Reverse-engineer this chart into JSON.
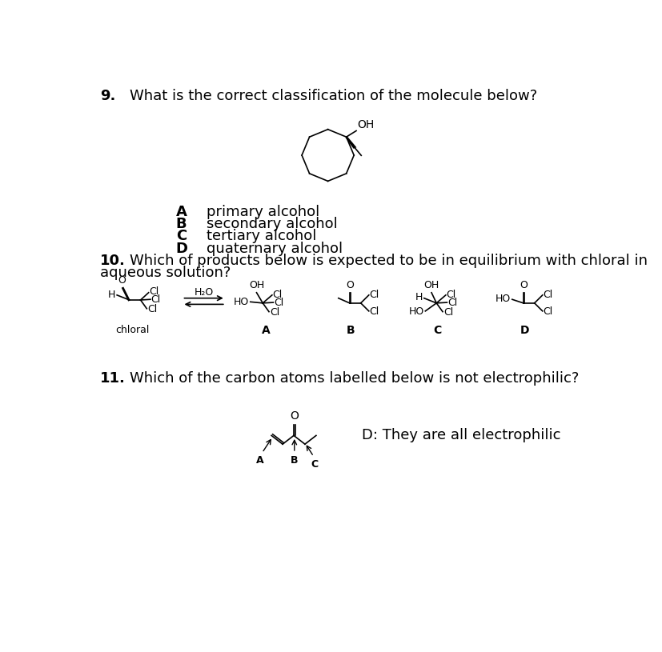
{
  "bg_color": "#ffffff",
  "text_color": "#000000",
  "q9_number": "9.",
  "q9_text": "What is the correct classification of the molecule below?",
  "q9_options": [
    [
      "A",
      "primary alcohol"
    ],
    [
      "B",
      "secondary alcohol"
    ],
    [
      "C",
      "tertiary alcohol"
    ],
    [
      "D",
      "quaternary alcohol"
    ]
  ],
  "q10_number": "10.",
  "q10_text": "Which of products below is expected to be in equilibrium with chloral in",
  "q10_text2": "aqueous solution?",
  "q11_number": "11.",
  "q11_text": "Which of the carbon atoms labelled below is not electrophilic?",
  "q11_answer": "D: They are all electrophilic",
  "font_size_q": 13,
  "font_size_opt": 13,
  "font_size_struct": 9
}
